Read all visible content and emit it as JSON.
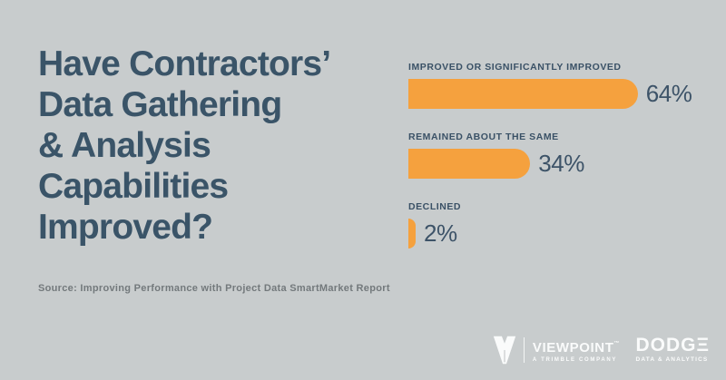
{
  "title": {
    "lines": [
      "Have Contractors’",
      "Data Gathering",
      "& Analysis",
      "Capabilities",
      "Improved?"
    ]
  },
  "source": "Source: Improving Performance with Project Data SmartMarket Report",
  "chart_data": {
    "type": "bar",
    "orientation": "horizontal",
    "categories": [
      "IMPROVED OR SIGNIFICANTLY IMPROVED",
      "REMAINED ABOUT THE SAME",
      "DECLINED"
    ],
    "values": [
      64,
      34,
      2
    ],
    "value_labels": [
      "64%",
      "34%",
      "2%"
    ],
    "xlim": [
      0,
      100
    ],
    "grid": false,
    "bar_color": "#F5A13E",
    "category_label_color": "#3A5166",
    "value_label_color": "#3D5368"
  },
  "footer": {
    "viewpoint": {
      "name": "VIEWPOINT",
      "trademark": "™",
      "tagline": "A TRIMBLE COMPANY"
    },
    "dodge": {
      "name": "DODGΞ",
      "tagline": "DATA & ANALYTICS"
    }
  },
  "colors": {
    "background": "#C8CCCD",
    "title_text": "#3A5468",
    "source_text": "#73797C",
    "accent_orange": "#F5A13E",
    "logo_white": "#FAFBFB"
  }
}
